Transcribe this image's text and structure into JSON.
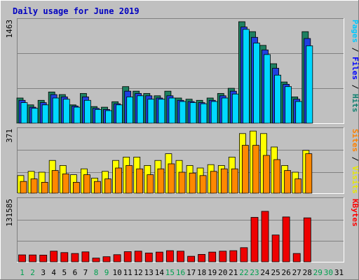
{
  "chart_data": {
    "type": "bar",
    "title": "Daily usage for June 2019",
    "categories": [
      "1",
      "2",
      "3",
      "4",
      "5",
      "6",
      "7",
      "8",
      "9",
      "10",
      "11",
      "12",
      "13",
      "14",
      "15",
      "16",
      "17",
      "18",
      "19",
      "20",
      "21",
      "22",
      "23",
      "24",
      "25",
      "26",
      "27",
      "28",
      "29",
      "30",
      "31"
    ],
    "weekend_days": [
      "1",
      "2",
      "8",
      "9",
      "15",
      "16",
      "22",
      "23",
      "29",
      "30"
    ],
    "panels": [
      {
        "id": "hits",
        "ymax_label": "1463",
        "ylim": [
          0,
          1463
        ],
        "label_parts": [
          {
            "text": "Pages",
            "color": "#00c8ff"
          },
          {
            "text": " / ",
            "color": "#000000"
          },
          {
            "text": "Files",
            "color": "#0000ff"
          },
          {
            "text": " / ",
            "color": "#000000"
          },
          {
            "text": "Hits",
            "color": "#108070"
          }
        ],
        "series": [
          {
            "name": "Hits",
            "color": "#1d8060",
            "values": [
              363,
              264,
              330,
              450,
              413,
              264,
              429,
              240,
              231,
              310,
              528,
              462,
              429,
              396,
              462,
              363,
              346,
              330,
              363,
              429,
              503,
              1463,
              1320,
              1122,
              858,
              594,
              379,
              1320,
              0,
              0,
              0
            ]
          },
          {
            "name": "Files",
            "color": "#2040e0",
            "values": [
              330,
              231,
              297,
              413,
              379,
              248,
              379,
              215,
              198,
              280,
              462,
              429,
              396,
              363,
              396,
              330,
              313,
              297,
              330,
              396,
              462,
              1386,
              1238,
              1056,
              792,
              561,
              346,
              1221,
              0,
              0,
              0
            ]
          },
          {
            "name": "Pages",
            "color": "#00d8ff",
            "values": [
              297,
              215,
              264,
              363,
              346,
              231,
              330,
              198,
              182,
              264,
              379,
              396,
              346,
              346,
              363,
              313,
              297,
              280,
              313,
              363,
              421,
              1353,
              1155,
              990,
              693,
              528,
              313,
              1116,
              0,
              0,
              0
            ]
          }
        ]
      },
      {
        "id": "visits",
        "ymax_label": "371",
        "ylim": [
          0,
          371
        ],
        "label_parts": [
          {
            "text": "Sites",
            "color": "#ff8000"
          },
          {
            "text": " / ",
            "color": "#000000"
          },
          {
            "text": "Visits",
            "color": "#e8e800"
          }
        ],
        "series": [
          {
            "name": "Visits",
            "color": "#ffff00",
            "values": [
              105,
              130,
              125,
              195,
              165,
              110,
              145,
              90,
              130,
              195,
              215,
              215,
              165,
              195,
              235,
              195,
              165,
              150,
              170,
              165,
              215,
              355,
              370,
              355,
              275,
              165,
              125,
              255,
              0,
              0,
              0
            ]
          },
          {
            "name": "Sites",
            "color": "#ff8800",
            "values": [
              70,
              85,
              65,
              135,
              115,
              65,
              110,
              70,
              85,
              150,
              165,
              145,
              110,
              145,
              175,
              125,
              120,
              105,
              130,
              145,
              145,
              285,
              285,
              225,
              200,
              135,
              85,
              235,
              0,
              0,
              0
            ]
          }
        ]
      },
      {
        "id": "kbytes",
        "ymax_label": "131585",
        "ylim": [
          0,
          131585
        ],
        "label_parts": [
          {
            "text": "KBytes",
            "color": "#ff0000"
          }
        ],
        "series": [
          {
            "name": "KBytes",
            "color": "#ee0000",
            "values": [
              15000,
              14800,
              14500,
              23000,
              20000,
              18000,
              21500,
              8000,
              11000,
              15500,
              22000,
              23000,
              19000,
              21000,
              24000,
              23000,
              12000,
              16000,
              21000,
              23000,
              24000,
              30500,
              96000,
              109000,
              58000,
              97000,
              18000,
              95000,
              0,
              0,
              0
            ]
          }
        ]
      }
    ]
  }
}
